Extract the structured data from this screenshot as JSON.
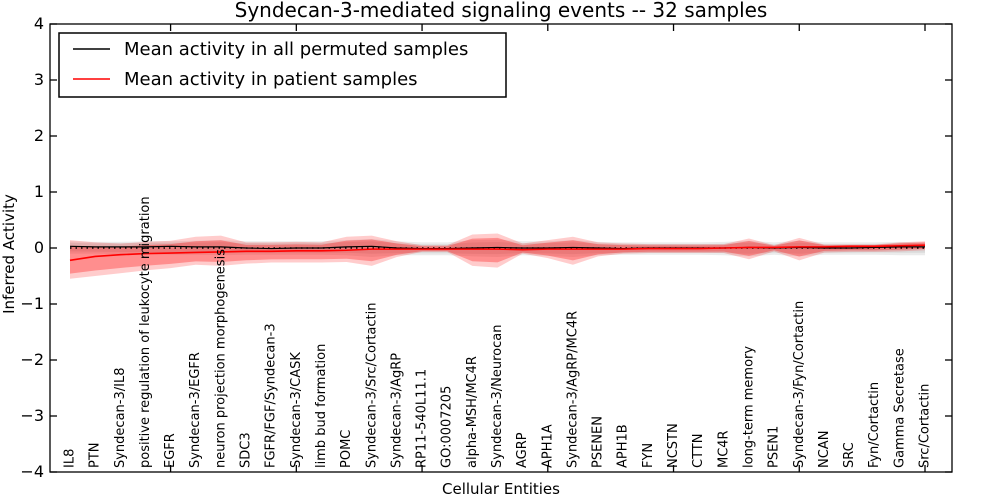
{
  "chart_data": {
    "type": "line",
    "title": "Syndecan-3-mediated signaling events -- 32 samples",
    "xlabel": "Cellular Entities",
    "ylabel": "Inferred Activity",
    "ylim": [
      -4,
      4
    ],
    "yticks": [
      -4,
      -3,
      -2,
      -1,
      0,
      1,
      2,
      3,
      4
    ],
    "x_major_tick_indices": [
      4,
      9,
      14,
      19,
      24,
      29,
      34
    ],
    "grid": false,
    "legend_position": "upper left",
    "zero_line": {
      "style": "dotted",
      "color": "#000000"
    },
    "categories": [
      "IL8",
      "PTN",
      "Syndecan-3/IL8",
      "positive regulation of leukocyte migration",
      "EGFR",
      "Syndecan-3/EGFR",
      "neuron projection morphogenesis",
      "SDC3",
      "FGFR/FGF/Syndecan-3",
      "Syndecan-3/CASK",
      "limb bud formation",
      "POMC",
      "Syndecan-3/Src/Cortactin",
      "Syndecan-3/AgRP",
      "RP11-540L11.1",
      "GO:0007205",
      "alpha-MSH/MC4R",
      "Syndecan-3/Neurocan",
      "AGRP",
      "APH1A",
      "Syndecan-3/AgRP/MC4R",
      "PSENEN",
      "APH1B",
      "FYN",
      "NCSTN",
      "CTTN",
      "MC4R",
      "long-term memory",
      "PSEN1",
      "Syndecan-3/Fyn/Cortactin",
      "NCAN",
      "SRC",
      "Fyn/Cortactin",
      "Gamma Secretase",
      "Src/Cortactin"
    ],
    "series": [
      {
        "name": "Mean activity in all permuted samples",
        "color": "#000000",
        "line_width": 1.2,
        "values": [
          0.03,
          0.02,
          0.02,
          0.02,
          0.03,
          0.02,
          0.02,
          0.0,
          -0.01,
          0.0,
          0.0,
          0.02,
          0.03,
          0.0,
          -0.01,
          -0.01,
          0.0,
          0.01,
          0.0,
          0.0,
          0.01,
          0.0,
          -0.01,
          0.0,
          0.0,
          0.0,
          0.0,
          0.01,
          0.0,
          0.01,
          0.0,
          0.0,
          0.01,
          0.02,
          0.02
        ],
        "band": {
          "fill_color": "#000000",
          "outer_opacity": 0.08,
          "inner_opacity": 0.07,
          "inner_ratio": 0.7,
          "low": [
            -0.1,
            -0.1,
            -0.11,
            -0.11,
            -0.12,
            -0.12,
            -0.13,
            -0.12,
            -0.12,
            -0.12,
            -0.12,
            -0.13,
            -0.16,
            -0.13,
            -0.13,
            -0.13,
            -0.15,
            -0.16,
            -0.13,
            -0.14,
            -0.16,
            -0.13,
            -0.12,
            -0.12,
            -0.12,
            -0.12,
            -0.13,
            -0.15,
            -0.12,
            -0.15,
            -0.12,
            -0.12,
            -0.12,
            -0.13,
            -0.13
          ],
          "high": [
            0.12,
            0.11,
            0.11,
            0.12,
            0.12,
            0.13,
            0.14,
            0.12,
            0.12,
            0.12,
            0.12,
            0.14,
            0.16,
            0.12,
            0.1,
            0.1,
            0.14,
            0.15,
            0.12,
            0.12,
            0.14,
            0.11,
            0.1,
            0.1,
            0.1,
            0.1,
            0.11,
            0.13,
            0.1,
            0.13,
            0.1,
            0.1,
            0.1,
            0.11,
            0.1
          ]
        }
      },
      {
        "name": "Mean activity in patient samples",
        "color": "#ff0000",
        "line_width": 1.6,
        "values": [
          -0.22,
          -0.15,
          -0.12,
          -0.1,
          -0.09,
          -0.08,
          -0.07,
          -0.06,
          -0.06,
          -0.05,
          -0.05,
          -0.04,
          -0.02,
          -0.02,
          -0.02,
          -0.02,
          -0.02,
          -0.02,
          -0.03,
          -0.02,
          -0.02,
          -0.02,
          -0.02,
          -0.01,
          -0.01,
          -0.01,
          0.0,
          0.01,
          0.01,
          0.02,
          0.02,
          0.03,
          0.03,
          0.04,
          0.05
        ],
        "band": {
          "fill_color": "#ff0000",
          "outer_opacity": 0.2,
          "inner_opacity": 0.3,
          "inner_ratio": 0.72,
          "low": [
            -0.55,
            -0.5,
            -0.45,
            -0.4,
            -0.36,
            -0.3,
            -0.32,
            -0.28,
            -0.26,
            -0.26,
            -0.26,
            -0.25,
            -0.32,
            -0.16,
            -0.07,
            -0.07,
            -0.32,
            -0.35,
            -0.1,
            -0.18,
            -0.3,
            -0.15,
            -0.1,
            -0.09,
            -0.09,
            -0.09,
            -0.09,
            -0.2,
            -0.06,
            -0.22,
            -0.08,
            -0.07,
            -0.07,
            -0.06,
            -0.04
          ],
          "high": [
            0.14,
            0.1,
            0.08,
            0.11,
            0.13,
            0.2,
            0.22,
            0.1,
            0.1,
            0.11,
            0.1,
            0.2,
            0.22,
            0.12,
            0.05,
            0.05,
            0.24,
            0.26,
            0.08,
            0.14,
            0.2,
            0.1,
            0.08,
            0.07,
            0.07,
            0.07,
            0.07,
            0.17,
            0.05,
            0.18,
            0.06,
            0.06,
            0.06,
            0.1,
            0.12
          ]
        }
      }
    ]
  }
}
